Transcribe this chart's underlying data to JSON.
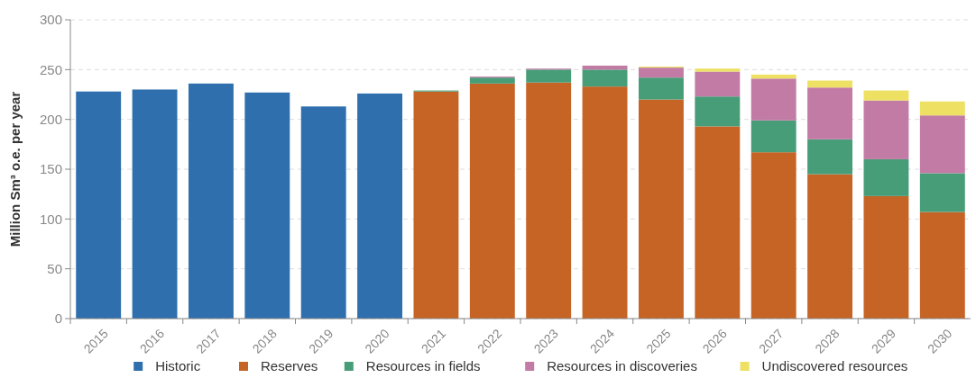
{
  "chart_data": {
    "type": "bar",
    "stacked": true,
    "ylabel": "Million Sm³ o.e. per year",
    "categories": [
      "2015",
      "2016",
      "2017",
      "2018",
      "2019",
      "2020",
      "2021",
      "2022",
      "2023",
      "2024",
      "2025",
      "2026",
      "2027",
      "2028",
      "2029",
      "2030"
    ],
    "series": [
      {
        "name": "Historic",
        "color": "#2f6fad",
        "values": [
          228,
          230,
          236,
          227,
          213,
          226,
          null,
          null,
          null,
          null,
          null,
          null,
          null,
          null,
          null,
          null
        ]
      },
      {
        "name": "Reserves",
        "color": "#c66426",
        "values": [
          null,
          null,
          null,
          null,
          null,
          null,
          228,
          236,
          237,
          233,
          220,
          193,
          167,
          145,
          123,
          107
        ]
      },
      {
        "name": "Resources in fields",
        "color": "#479d78",
        "values": [
          null,
          null,
          null,
          null,
          null,
          null,
          1,
          6,
          13,
          17,
          22,
          30,
          32,
          35,
          37,
          39
        ]
      },
      {
        "name": "Resources in discoveries",
        "color": "#c27ba5",
        "values": [
          null,
          null,
          null,
          null,
          null,
          null,
          null,
          1,
          1,
          4,
          10,
          25,
          42,
          52,
          59,
          58
        ]
      },
      {
        "name": "Undiscovered resources",
        "color": "#ede062",
        "values": [
          null,
          null,
          null,
          null,
          null,
          null,
          null,
          null,
          null,
          null,
          1,
          3,
          4,
          7,
          10,
          14
        ]
      }
    ],
    "ylim": [
      0,
      300
    ],
    "yticks": [
      0,
      50,
      100,
      150,
      200,
      250,
      300
    ],
    "grid": "y",
    "legend": "bottom"
  }
}
